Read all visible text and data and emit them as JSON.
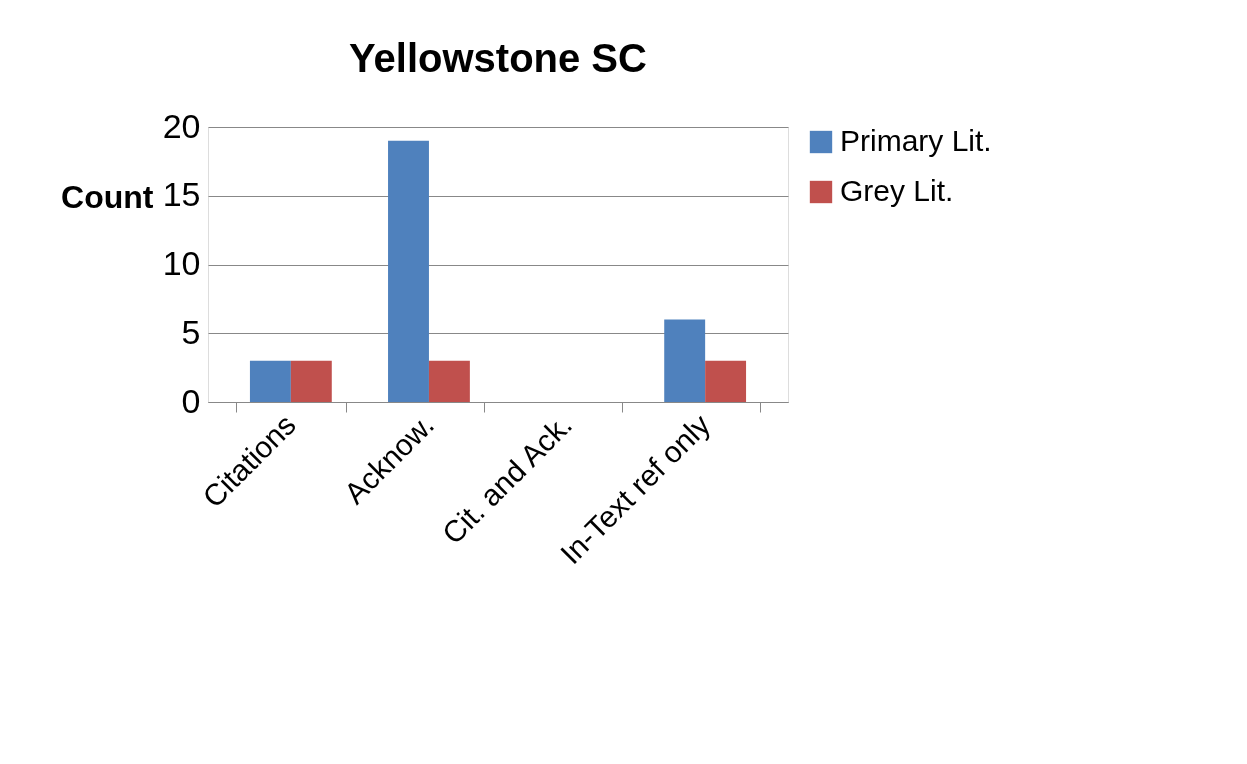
{
  "chart_data": {
    "type": "bar",
    "title": "Yellowstone SC",
    "ylabel": "Count",
    "categories": [
      "Citations",
      "Acknow.",
      "Cit. and Ack.",
      "In-Text ref only"
    ],
    "series": [
      {
        "name": "Primary Lit.",
        "color": "#4f81bd",
        "values": [
          3,
          19,
          0,
          6
        ]
      },
      {
        "name": "Grey Lit.",
        "color": "#c0504d",
        "values": [
          3,
          3,
          0,
          3
        ]
      }
    ],
    "ylim": [
      0,
      20
    ],
    "yticks": [
      0,
      5,
      10,
      15,
      20
    ],
    "grid": "y",
    "legend": "right"
  }
}
